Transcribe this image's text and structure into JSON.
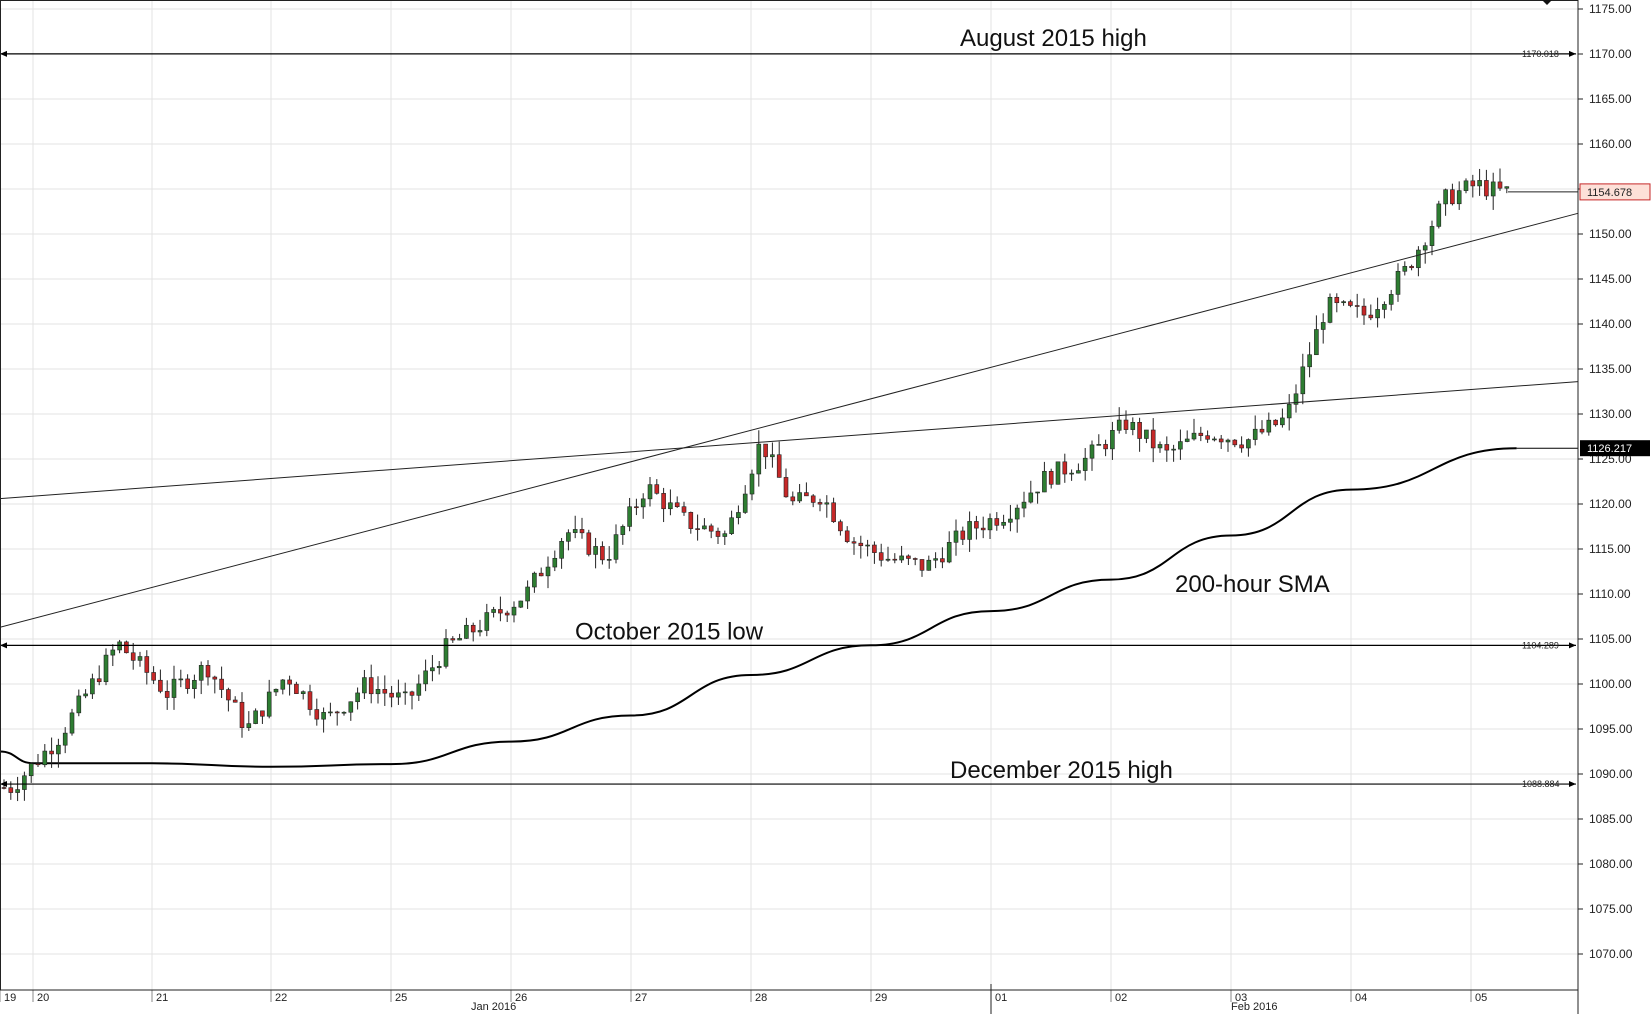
{
  "chart_data": {
    "type": "candlestick",
    "title": "",
    "y_axis": {
      "side": "right",
      "range": [
        1066.0,
        1176.0
      ],
      "tick_labels": [
        "1070.00",
        "1075.00",
        "1080.00",
        "1085.00",
        "1090.00",
        "1095.00",
        "1100.00",
        "1105.00",
        "1110.00",
        "1115.00",
        "1120.00",
        "1125.00",
        "1130.00",
        "1135.00",
        "1140.00",
        "1145.00",
        "1150.00",
        "1155.00",
        "1160.00",
        "1165.00",
        "1170.00",
        "1175.00"
      ]
    },
    "x_axis": {
      "day_labels": [
        "19",
        "20",
        "21",
        "22",
        "25",
        "26",
        "27",
        "28",
        "29",
        "01",
        "02",
        "03",
        "04",
        "05"
      ],
      "month_labels": [
        "Jan 2016",
        "Feb 2016"
      ]
    },
    "horizontal_levels": [
      {
        "label": "August 2015 high",
        "value": 1170.018,
        "value_text": "1170.018"
      },
      {
        "label": "October 2015 low",
        "value": 1104.289,
        "value_text": "1104.289"
      },
      {
        "label": "December 2015 high",
        "value": 1088.884,
        "value_text": "1088.884"
      }
    ],
    "trendlines": [
      {
        "from": {
          "date": "2016-01-19",
          "value": 1120.6
        },
        "to": {
          "date": "2016-02-05",
          "value": 1133.6
        }
      },
      {
        "from": {
          "date": "2016-01-19",
          "value": 1106.3
        },
        "to": {
          "date": "2016-02-05",
          "value": 1152.3
        }
      }
    ],
    "sma": {
      "label": "200-hour SMA",
      "current_value_text": "1126.217",
      "points": [
        [
          "2016-01-19",
          1092.5
        ],
        [
          "2016-01-20",
          1091.2
        ],
        [
          "2016-01-21",
          1091.2
        ],
        [
          "2016-01-22",
          1090.8
        ],
        [
          "2016-01-25",
          1091.1
        ],
        [
          "2016-01-26",
          1093.6
        ],
        [
          "2016-01-27",
          1096.5
        ],
        [
          "2016-01-28",
          1101.0
        ],
        [
          "2016-01-29",
          1104.3
        ],
        [
          "2016-02-01",
          1108.1
        ],
        [
          "2016-02-02",
          1111.6
        ],
        [
          "2016-02-03",
          1116.5
        ],
        [
          "2016-02-04",
          1121.6
        ],
        [
          "2016-02-05",
          1126.2
        ]
      ]
    },
    "current_price": {
      "value": 1154.678,
      "value_text": "1154.678"
    },
    "price_anchors": [
      [
        "2016-01-19",
        1088.5
      ],
      [
        "2016-01-20",
        1094.0
      ],
      [
        "2016-01-20",
        1104.5
      ],
      [
        "2016-01-21",
        1099.0
      ],
      [
        "2016-01-21",
        1102.0
      ],
      [
        "2016-01-21",
        1095.0
      ],
      [
        "2016-01-22",
        1101.0
      ],
      [
        "2016-01-22",
        1096.0
      ],
      [
        "2016-01-22",
        1100.0
      ],
      [
        "2016-01-25",
        1098.0
      ],
      [
        "2016-01-25",
        1104.0
      ],
      [
        "2016-01-25",
        1107.0
      ],
      [
        "2016-01-26",
        1110.0
      ],
      [
        "2016-01-26",
        1117.0
      ],
      [
        "2016-01-26",
        1114.0
      ],
      [
        "2016-01-27",
        1122.0
      ],
      [
        "2016-01-27",
        1118.0
      ],
      [
        "2016-01-27",
        1116.5
      ],
      [
        "2016-01-28",
        1127.0
      ],
      [
        "2016-01-28",
        1120.0
      ],
      [
        "2016-01-28",
        1121.0
      ],
      [
        "2016-01-28",
        1116.0
      ],
      [
        "2016-01-29",
        1114.0
      ],
      [
        "2016-01-29",
        1113.0
      ],
      [
        "2016-01-29",
        1117.0
      ],
      [
        "2016-02-01",
        1119.0
      ],
      [
        "2016-02-01",
        1123.0
      ],
      [
        "2016-02-01",
        1125.0
      ],
      [
        "2016-02-02",
        1129.0
      ],
      [
        "2016-02-02",
        1125.5
      ],
      [
        "2016-02-02",
        1128.0
      ],
      [
        "2016-02-03",
        1127.0
      ],
      [
        "2016-02-03",
        1129.5
      ],
      [
        "2016-02-03",
        1142.0
      ],
      [
        "2016-02-04",
        1141.0
      ],
      [
        "2016-02-04",
        1146.0
      ],
      [
        "2016-02-04",
        1154.0
      ],
      [
        "2016-02-05",
        1155.5
      ],
      [
        "2016-02-05",
        1154.7
      ]
    ],
    "candle_colors": {
      "up": "#2e7d32",
      "down": "#c62828"
    },
    "grid": true
  }
}
